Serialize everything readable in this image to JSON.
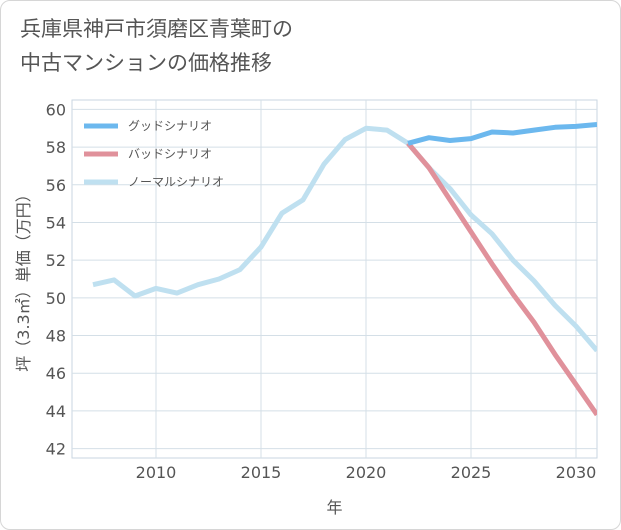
{
  "title_lines": [
    "兵庫県神戸市須磨区青葉町の",
    "中古マンションの価格推移"
  ],
  "chart_data": {
    "type": "line",
    "xlabel": "年",
    "ylabel": "坪（3.3㎡）単価（万円）",
    "xlim": [
      2006,
      2031
    ],
    "ylim": [
      41.5,
      60.5
    ],
    "xticks": [
      2010,
      2015,
      2020,
      2025,
      2030
    ],
    "yticks": [
      42,
      44,
      46,
      48,
      50,
      52,
      54,
      56,
      58,
      60
    ],
    "grid": true,
    "legend_position": "top-left",
    "series": [
      {
        "name": "グッドシナリオ",
        "color": "#6cb8ee",
        "x": [
          2022,
          2023,
          2024,
          2025,
          2026,
          2027,
          2028,
          2029,
          2030,
          2031
        ],
        "y": [
          58.2,
          58.5,
          58.35,
          58.45,
          58.8,
          58.75,
          58.9,
          59.05,
          59.1,
          59.2
        ]
      },
      {
        "name": "バッドシナリオ",
        "color": "#e0919b",
        "x": [
          2022,
          2023,
          2024,
          2025,
          2026,
          2027,
          2028,
          2029,
          2030,
          2031
        ],
        "y": [
          58.2,
          56.9,
          55.2,
          53.5,
          51.8,
          50.2,
          48.7,
          47.0,
          45.4,
          43.8
        ]
      },
      {
        "name": "ノーマルシナリオ",
        "color": "#bfe0f0",
        "x": [
          2007,
          2008,
          2009,
          2010,
          2011,
          2012,
          2013,
          2014,
          2015,
          2016,
          2017,
          2018,
          2019,
          2020,
          2021,
          2022,
          2023,
          2024,
          2025,
          2026,
          2027,
          2028,
          2029,
          2030,
          2031
        ],
        "y": [
          50.7,
          50.95,
          50.1,
          50.5,
          50.25,
          50.7,
          51.0,
          51.5,
          52.7,
          54.5,
          55.2,
          57.1,
          58.4,
          59.0,
          58.9,
          58.2,
          56.9,
          55.8,
          54.4,
          53.4,
          52.0,
          50.9,
          49.6,
          48.5,
          47.2
        ]
      }
    ]
  }
}
